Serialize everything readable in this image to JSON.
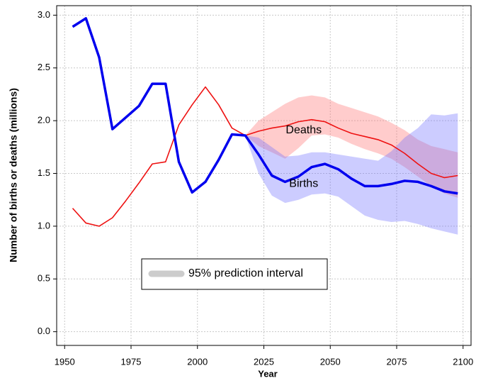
{
  "chart_data": {
    "type": "line",
    "xlabel": "Year",
    "ylabel": "Number of births or deaths (millions)",
    "x": [
      1953,
      1958,
      1963,
      1968,
      1973,
      1978,
      1983,
      1988,
      1993,
      1998,
      2003,
      2008,
      2013,
      2018,
      2023,
      2028,
      2033,
      2038,
      2043,
      2048,
      2053,
      2058,
      2063,
      2068,
      2073,
      2078,
      2083,
      2088,
      2093,
      2098
    ],
    "series": [
      {
        "name": "Deaths",
        "color": "#ee1111",
        "width": 1.6,
        "band_color": "rgba(255,110,110,0.35)",
        "label_x": 2040,
        "label_y": 1.91,
        "values": [
          1.17,
          1.03,
          1.0,
          1.08,
          1.24,
          1.41,
          1.59,
          1.61,
          1.96,
          2.15,
          2.32,
          2.15,
          1.93,
          1.86,
          1.9,
          1.93,
          1.95,
          1.99,
          2.01,
          1.99,
          1.93,
          1.88,
          1.85,
          1.82,
          1.77,
          1.69,
          1.59,
          1.5,
          1.46,
          1.48
        ],
        "lower": [
          null,
          null,
          null,
          null,
          null,
          null,
          null,
          null,
          null,
          null,
          null,
          null,
          null,
          1.86,
          1.76,
          1.7,
          1.64,
          1.74,
          1.86,
          1.87,
          1.84,
          1.78,
          1.73,
          1.69,
          1.64,
          1.56,
          1.47,
          1.38,
          1.31,
          1.27
        ],
        "upper": [
          null,
          null,
          null,
          null,
          null,
          null,
          null,
          null,
          null,
          null,
          null,
          null,
          null,
          1.86,
          2.0,
          2.08,
          2.16,
          2.22,
          2.24,
          2.22,
          2.16,
          2.12,
          2.08,
          2.04,
          1.98,
          1.91,
          1.82,
          1.76,
          1.73,
          1.7
        ]
      },
      {
        "name": "Births",
        "color": "#0000ee",
        "width": 3.5,
        "band_color": "rgba(110,110,255,0.35)",
        "label_x": 2040,
        "label_y": 1.4,
        "values": [
          2.89,
          2.97,
          2.6,
          1.92,
          2.03,
          2.14,
          2.35,
          2.35,
          1.61,
          1.32,
          1.42,
          1.63,
          1.87,
          1.86,
          1.68,
          1.48,
          1.42,
          1.47,
          1.56,
          1.59,
          1.54,
          1.45,
          1.38,
          1.38,
          1.4,
          1.43,
          1.42,
          1.38,
          1.33,
          1.31
        ],
        "lower": [
          null,
          null,
          null,
          null,
          null,
          null,
          null,
          null,
          null,
          null,
          null,
          null,
          null,
          1.86,
          1.5,
          1.29,
          1.22,
          1.25,
          1.3,
          1.31,
          1.28,
          1.19,
          1.1,
          1.06,
          1.04,
          1.05,
          1.02,
          0.98,
          0.95,
          0.92
        ],
        "upper": [
          null,
          null,
          null,
          null,
          null,
          null,
          null,
          null,
          null,
          null,
          null,
          null,
          null,
          1.86,
          1.84,
          1.75,
          1.66,
          1.67,
          1.7,
          1.7,
          1.68,
          1.66,
          1.64,
          1.62,
          1.71,
          1.84,
          1.93,
          2.06,
          2.05,
          2.07
        ]
      }
    ],
    "interval": {
      "label": "95% prediction interval",
      "color": "#cccccc"
    },
    "xlim": [
      1947,
      2103
    ],
    "xticks": [
      1950,
      1975,
      2000,
      2025,
      2050,
      2075,
      2100
    ],
    "ylim": [
      -0.13,
      3.09
    ],
    "yticks": [
      {
        "value": 0,
        "label": "0.0"
      },
      0.5,
      {
        "value": 1,
        "label": "1.0"
      },
      1.5,
      {
        "value": 2,
        "label": "2.0"
      },
      2.5,
      {
        "value": 3,
        "label": "3.0"
      }
    ],
    "grid": true
  }
}
